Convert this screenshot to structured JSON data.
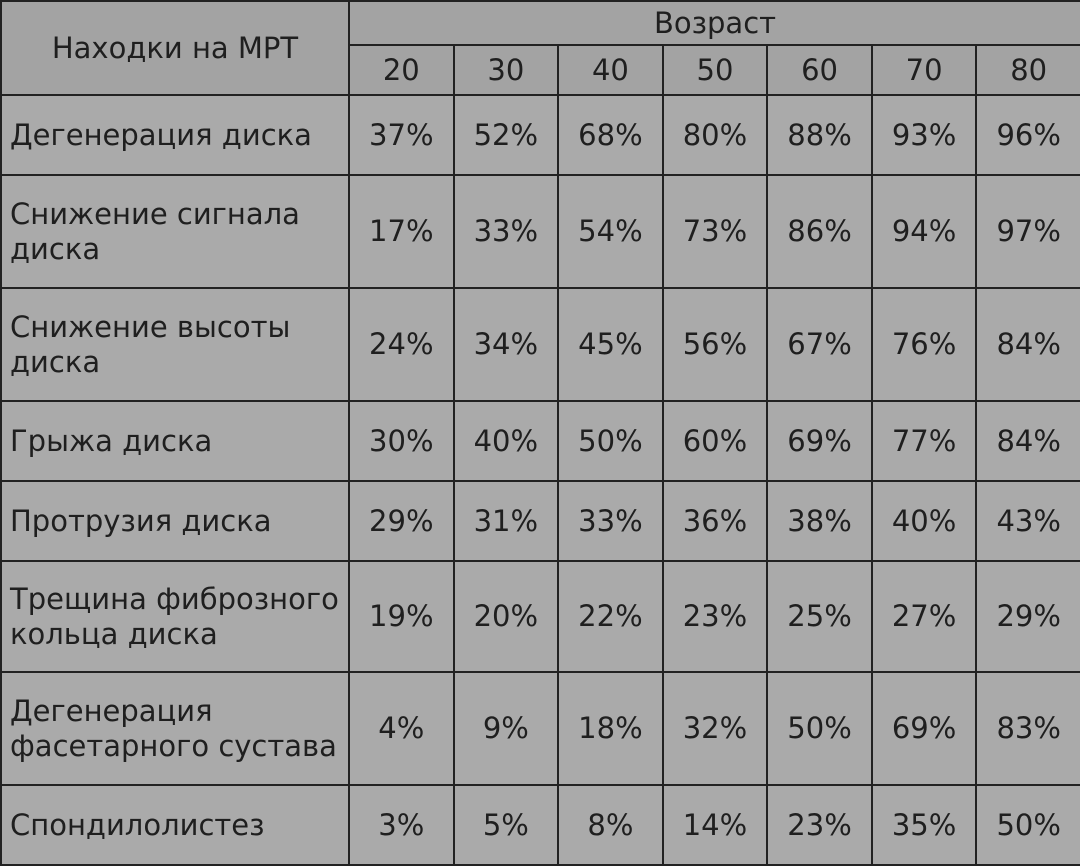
{
  "table": {
    "corner_header": "Находки на МРТ",
    "group_header": "Возраст",
    "ages": [
      "20",
      "30",
      "40",
      "50",
      "60",
      "70",
      "80"
    ],
    "rows": [
      {
        "label": "Дегенерация диска",
        "values": [
          "37%",
          "52%",
          "68%",
          "80%",
          "88%",
          "93%",
          "96%"
        ]
      },
      {
        "label": "Снижение сигнала диска",
        "values": [
          "17%",
          "33%",
          "54%",
          "73%",
          "86%",
          "94%",
          "97%"
        ]
      },
      {
        "label": "Снижение высоты диска",
        "values": [
          "24%",
          "34%",
          "45%",
          "56%",
          "67%",
          "76%",
          "84%"
        ]
      },
      {
        "label": "Грыжа диска",
        "values": [
          "30%",
          "40%",
          "50%",
          "60%",
          "69%",
          "77%",
          "84%"
        ]
      },
      {
        "label": "Протрузия диска",
        "values": [
          "29%",
          "31%",
          "33%",
          "36%",
          "38%",
          "40%",
          "43%"
        ]
      },
      {
        "label": "Трещина фиброзного кольца диска",
        "values": [
          "19%",
          "20%",
          "22%",
          "23%",
          "25%",
          "27%",
          "29%"
        ]
      },
      {
        "label": "Дегенерация фасетарного сустава",
        "values": [
          "4%",
          "9%",
          "18%",
          "32%",
          "50%",
          "69%",
          "83%"
        ]
      },
      {
        "label": "Спондилолистез",
        "values": [
          "3%",
          "5%",
          "8%",
          "14%",
          "23%",
          "35%",
          "50%"
        ]
      }
    ]
  },
  "chart_data": {
    "type": "table",
    "row_header": "Находки на МРТ",
    "column_group_header": "Возраст",
    "columns": [
      20,
      30,
      40,
      50,
      60,
      70,
      80
    ],
    "rows": [
      {
        "label": "Дегенерация диска",
        "values": [
          37,
          52,
          68,
          80,
          88,
          93,
          96
        ]
      },
      {
        "label": "Снижение сигнала диска",
        "values": [
          17,
          33,
          54,
          73,
          86,
          94,
          97
        ]
      },
      {
        "label": "Снижение высоты диска",
        "values": [
          24,
          34,
          45,
          56,
          67,
          76,
          84
        ]
      },
      {
        "label": "Грыжа диска",
        "values": [
          30,
          40,
          50,
          60,
          69,
          77,
          84
        ]
      },
      {
        "label": "Протрузия диска",
        "values": [
          29,
          31,
          33,
          36,
          38,
          40,
          43
        ]
      },
      {
        "label": "Трещина фиброзного кольца диска",
        "values": [
          19,
          20,
          22,
          23,
          25,
          27,
          29
        ]
      },
      {
        "label": "Дегенерация фасетарного сустава",
        "values": [
          4,
          9,
          18,
          32,
          50,
          69,
          83
        ]
      },
      {
        "label": "Спондилолистез",
        "values": [
          3,
          5,
          8,
          14,
          23,
          35,
          50
        ]
      }
    ]
  },
  "colors": {
    "background": "#a9a9a9",
    "border": "#222222",
    "text": "#1f1f1f"
  }
}
